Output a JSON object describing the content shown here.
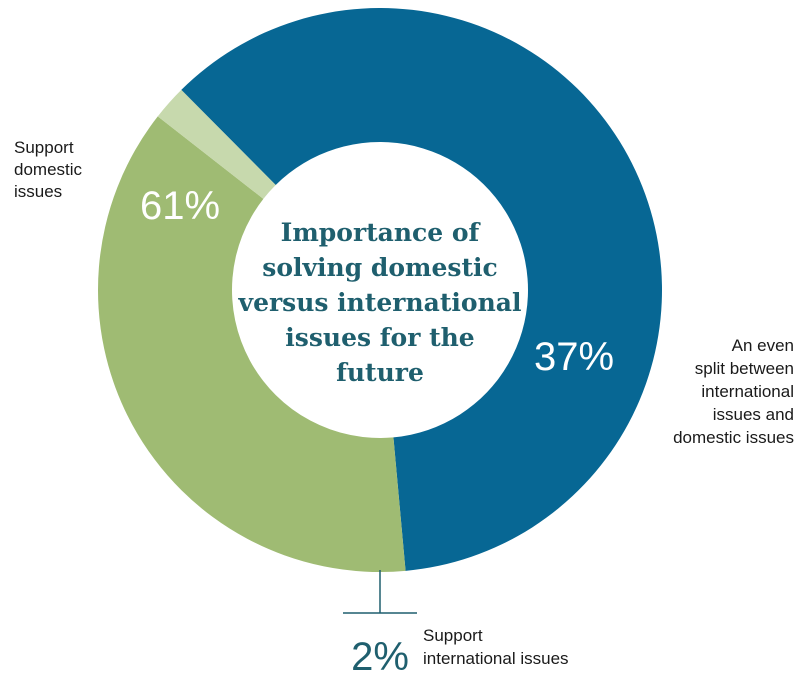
{
  "chart_data": {
    "type": "pie",
    "title": "Importance of solving domestic versus international issues for the future",
    "title_lines": [
      "Importance of",
      "solving domestic",
      "versus international",
      "issues for the",
      "future"
    ],
    "slices": [
      {
        "id": "domestic",
        "value": 61,
        "value_label": "61%",
        "label_lines": [
          "Support",
          "domestic",
          "issues"
        ],
        "color": "#076794",
        "label_color": "#ffffff"
      },
      {
        "id": "even-split",
        "value": 37,
        "value_label": "37%",
        "label_lines": [
          "An even",
          "split between",
          "international",
          "issues and",
          "domestic issues"
        ],
        "color": "#9fbb73",
        "label_color": "#ffffff"
      },
      {
        "id": "international",
        "value": 2,
        "value_label": "2%",
        "label_lines": [
          "Support",
          "international issues"
        ],
        "color": "#c7d9ad",
        "label_color": "#1f5f6e"
      }
    ],
    "accent_color": "#1f5f6e"
  }
}
